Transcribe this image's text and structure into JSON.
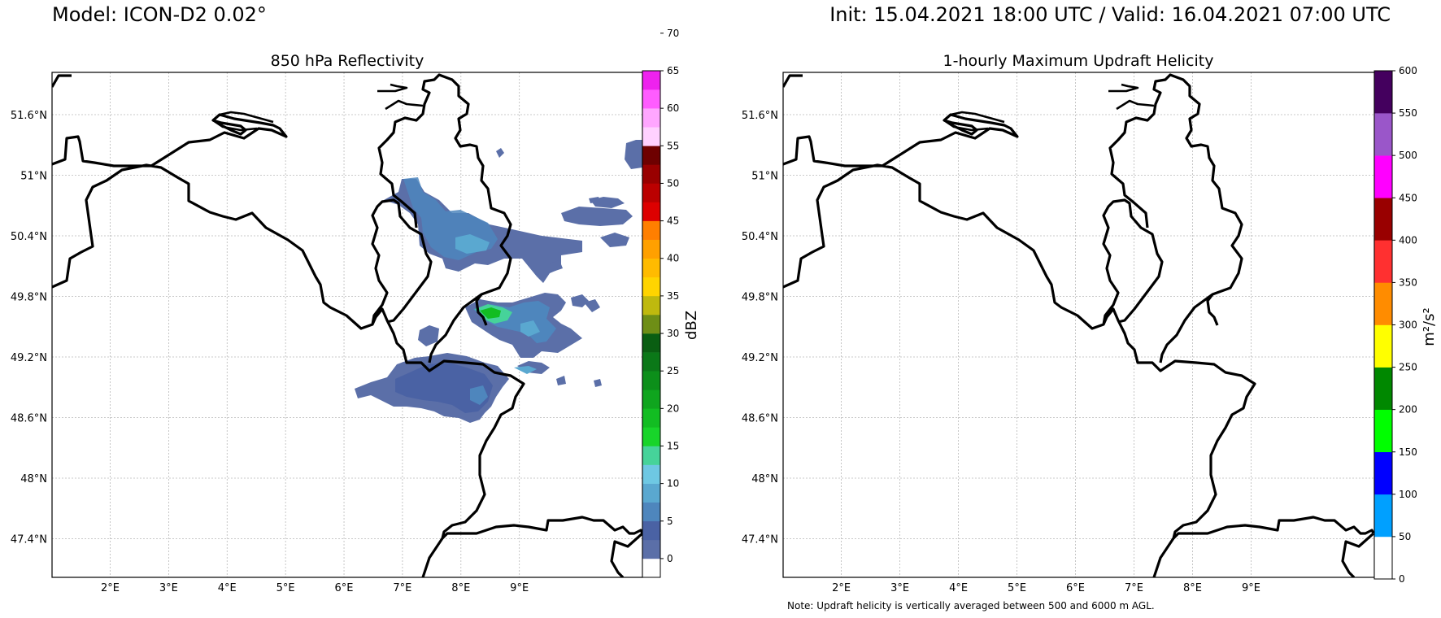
{
  "header": {
    "model": "Model: ICON-D2 0.02°",
    "times": "Init: 15.04.2021 18:00 UTC / Valid: 16.04.2021 07:00 UTC"
  },
  "note": "Note: Updraft helicity is vertically averaged between 500 and 6000 m AGL.",
  "panels": [
    {
      "title": "850 hPa Reflectivity",
      "lon_labels": [
        "2°E",
        "3°E",
        "4°E",
        "5°E",
        "6°E",
        "7°E",
        "8°E",
        "9°E"
      ],
      "lat_labels": [
        "51.6°N",
        "51°N",
        "50.4°N",
        "49.8°N",
        "49.2°N",
        "48.6°N",
        "48°N",
        "47.4°N"
      ],
      "colorbar": {
        "label": "dBZ",
        "ticks": [
          "0",
          "5",
          "10",
          "15",
          "20",
          "25",
          "30",
          "35",
          "40",
          "45",
          "50",
          "55",
          "60",
          "65",
          "70"
        ],
        "colors": [
          "#ffffff",
          "#5b6fa8",
          "#4a62a4",
          "#4e86bd",
          "#5aa8d0",
          "#6ec8e3",
          "#46d39a",
          "#18d42a",
          "#12bd22",
          "#0fa51e",
          "#0c8f1a",
          "#0b7818",
          "#0a5e12",
          "#6e8e16",
          "#bfb90e",
          "#ffd400",
          "#ffbb00",
          "#ffa000",
          "#ff7f00",
          "#dd0000",
          "#bb0000",
          "#990000",
          "#6e0000",
          "#ffd1ff",
          "#ffa6ff",
          "#ff5cff",
          "#ee22ee"
        ]
      }
    },
    {
      "title": "1-hourly Maximum Updraft Helicity",
      "lon_labels": [
        "2°E",
        "3°E",
        "4°E",
        "5°E",
        "6°E",
        "7°E",
        "8°E",
        "9°E"
      ],
      "lat_labels": [
        "51.6°N",
        "51°N",
        "50.4°N",
        "49.8°N",
        "49.2°N",
        "48.6°N",
        "48°N",
        "47.4°N"
      ],
      "colorbar": {
        "label": "m²/s²",
        "ticks": [
          "0",
          "50",
          "100",
          "150",
          "200",
          "250",
          "300",
          "350",
          "400",
          "450",
          "500",
          "550",
          "600"
        ],
        "colors": [
          "#ffffff",
          "#00a0ff",
          "#0000ff",
          "#00ff00",
          "#008800",
          "#ffff00",
          "#ff8c00",
          "#ff3030",
          "#990000",
          "#ff00ff",
          "#9a56c9",
          "#44005e"
        ]
      }
    }
  ]
}
